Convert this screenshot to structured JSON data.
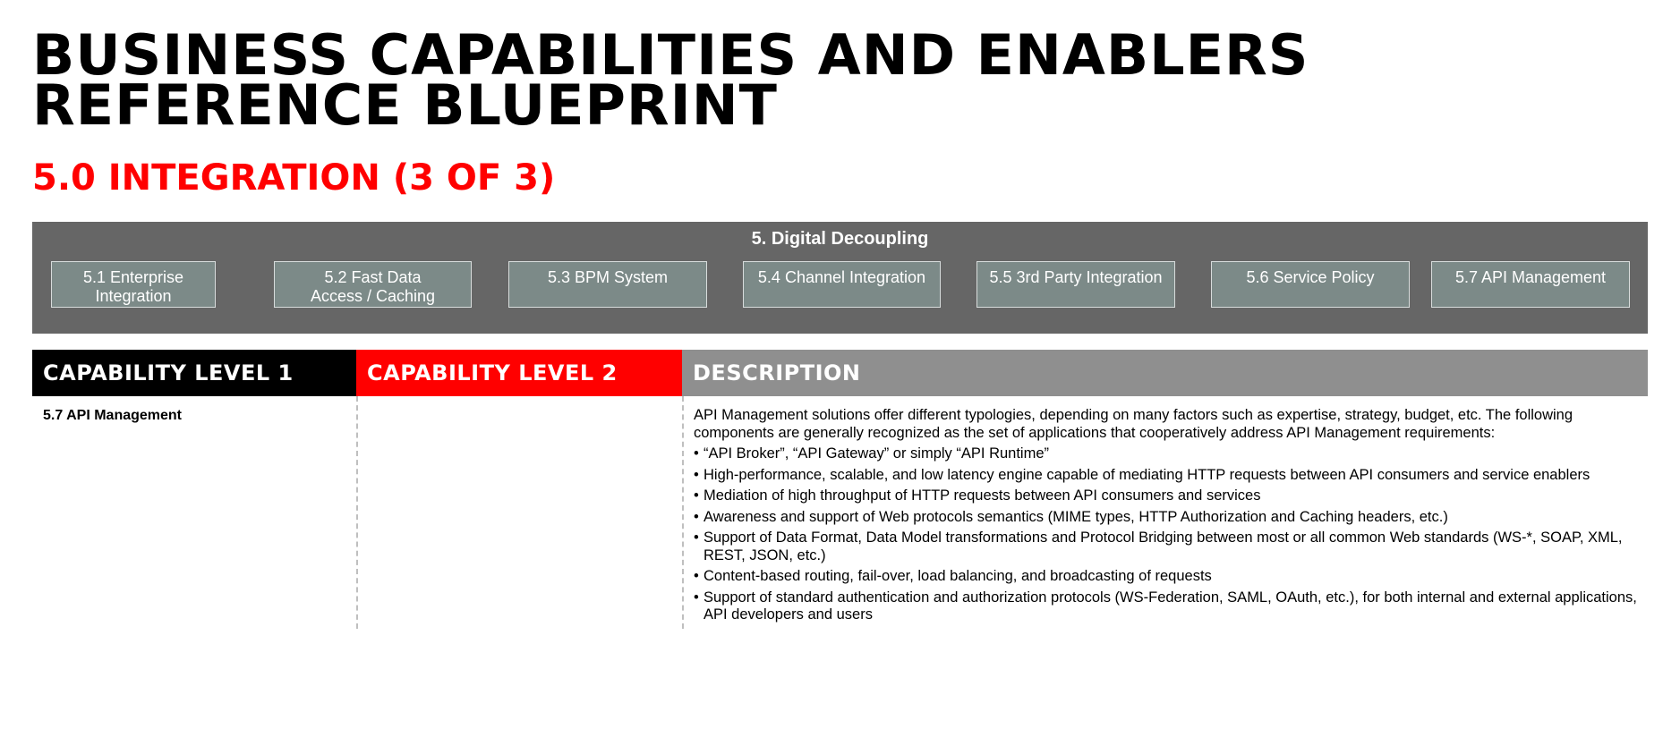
{
  "title": {
    "line1": "BUSINESS CAPABILITIES AND ENABLERS",
    "line2": "REFERENCE BLUEPRINT"
  },
  "subtitle": "5.0 INTEGRATION (3 OF 3)",
  "band": {
    "title": "5. Digital Decoupling",
    "capabilities": [
      {
        "line1": "5.1  Enterprise Integration",
        "line2": ""
      },
      {
        "line1": "5.2 Fast Data",
        "line2": "Access / Caching"
      },
      {
        "line1": "5.3  BPM System",
        "line2": ""
      },
      {
        "line1": "5.4 Channel Integration",
        "line2": ""
      },
      {
        "line1": "5.5  3rd Party Integration",
        "line2": ""
      },
      {
        "line1": "5.6 Service Policy",
        "line2": ""
      },
      {
        "line1": "5.7 API Management",
        "line2": ""
      }
    ]
  },
  "table": {
    "headers": {
      "level1": "CAPABILITY LEVEL 1",
      "level2": "CAPABILITY LEVEL 2",
      "description": "DESCRIPTION"
    },
    "row": {
      "level1": "5.7 API Management",
      "level2": "",
      "intro": "API Management solutions offer different typologies, depending on many factors such as expertise, strategy, budget, etc. The following components are generally recognized as the set of applications that cooperatively address API Management requirements:",
      "bullet_char": "•",
      "bullets": [
        "“API Broker”, “API Gateway” or simply “API Runtime”",
        "High-performance, scalable, and low latency engine capable of mediating HTTP requests between API consumers and service enablers",
        "Mediation of high throughput of HTTP requests between API consumers and services",
        "Awareness and support of Web protocols semantics (MIME types, HTTP Authorization and Caching headers, etc.)",
        "Support of Data Format, Data Model transformations and Protocol Bridging between most or all common Web standards (WS-*, SOAP, XML, REST, JSON, etc.)",
        "Content-based routing, fail-over, load balancing, and broadcasting of requests",
        "Support of standard authentication and authorization protocols (WS-Federation, SAML, OAuth, etc.), for both internal and external applications, API developers and users"
      ]
    }
  },
  "colors": {
    "accent_red": "#ff0000",
    "band_gray": "#666666",
    "box_gray": "#7c8a88",
    "header_black": "#000000",
    "header_gray": "#8f8f8f"
  }
}
